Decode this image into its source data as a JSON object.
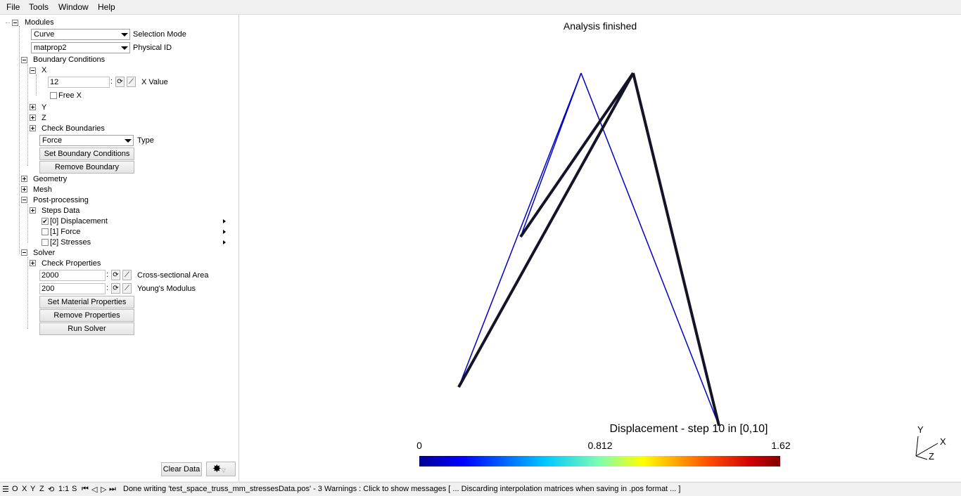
{
  "menu": {
    "file": "File",
    "tools": "Tools",
    "window": "Window",
    "help": "Help"
  },
  "tree": {
    "modules": "Modules",
    "selection_mode_value": "Curve",
    "selection_mode_label": "Selection Mode",
    "physical_id_value": "matprop2",
    "physical_id_label": "Physical ID",
    "boundary_conditions": "Boundary Conditions",
    "x_node": "X",
    "x_value": "12",
    "x_value_label": "X Value",
    "free_x": "Free X",
    "y_node": "Y",
    "z_node": "Z",
    "check_boundaries": "Check Boundaries",
    "type_value": "Force",
    "type_label": "Type",
    "set_boundary_conditions": "Set Boundary Conditions",
    "remove_boundary": "Remove Boundary",
    "geometry": "Geometry",
    "mesh": "Mesh",
    "post_processing": "Post-processing",
    "steps_data": "Steps Data",
    "step0": "[0] Displacement",
    "step1": "[1] Force",
    "step2": "[2] Stresses",
    "solver": "Solver",
    "check_properties": "Check Properties",
    "area_value": "2000",
    "area_label": "Cross-sectional Area",
    "modulus_value": "200",
    "modulus_label": "Young's Modulus",
    "set_material_properties": "Set Material Properties",
    "remove_properties": "Remove Properties",
    "run_solver": "Run Solver",
    "clear_data": "Clear Data"
  },
  "graphic": {
    "status_title": "Analysis finished",
    "scale_title": "Displacement - step 10 in [0,10]",
    "scale_min": "0",
    "scale_mid": "0.812",
    "scale_max": "1.62",
    "axis_y": "Y",
    "axis_x": "X",
    "axis_z": "Z"
  },
  "status": {
    "message": "Done writing 'test_space_truss_mm_stressesData.pos'  -  3 Warnings : Click to show messages [ ... Discarding interpolation matrices when saving in .pos format ... ]",
    "btn_o": "O",
    "btn_x": "X",
    "btn_y": "Y",
    "btn_z": "Z",
    "scale": "1:1",
    "btn_s": "S"
  },
  "colors": {
    "accent_blue": "#0000c8",
    "bar_dark": "#141428"
  }
}
